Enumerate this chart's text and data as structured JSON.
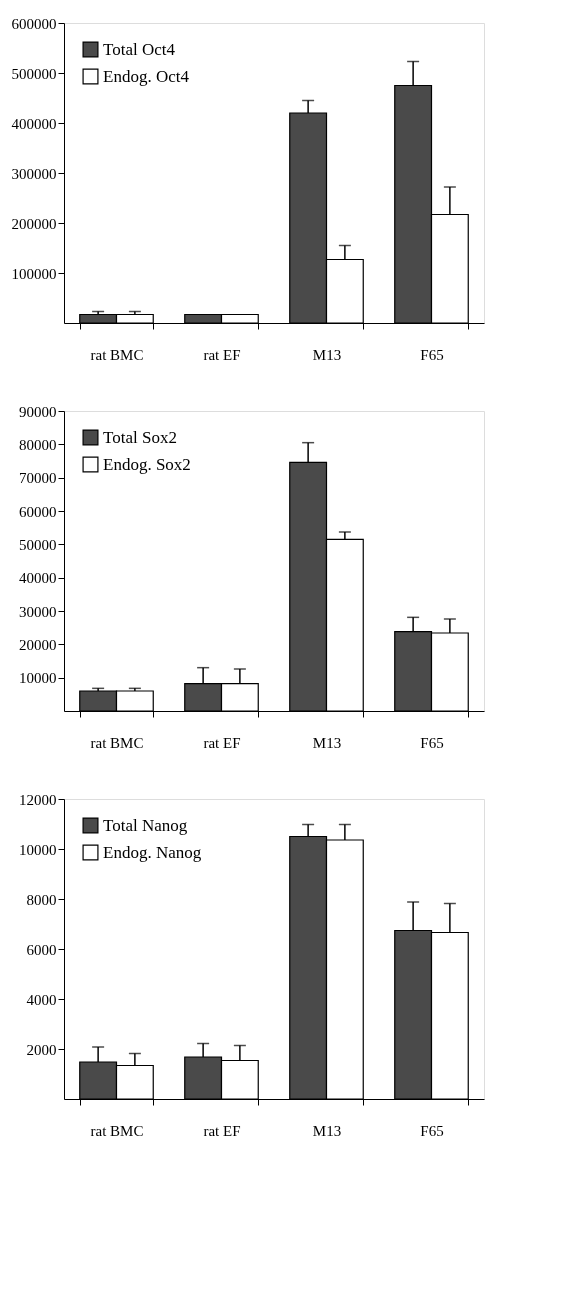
{
  "chart_data": [
    {
      "type": "bar",
      "categories": [
        "rat BMC",
        "rat EF",
        "M13",
        "F65"
      ],
      "ylim": [
        0,
        600000
      ],
      "yticks": [
        100000,
        200000,
        300000,
        400000,
        500000,
        600000
      ],
      "legend": "top left",
      "grid": false,
      "series": [
        {
          "name": "Total Oct4",
          "color": "#4a4a4a",
          "values": [
            17000,
            17000,
            420000,
            475000
          ],
          "errors": [
            6000,
            null,
            25000,
            48000
          ]
        },
        {
          "name": "Endog. Oct4",
          "color": "#ffffff",
          "values": [
            17000,
            17000,
            127000,
            217000
          ],
          "errors": [
            6000,
            null,
            28000,
            55000
          ]
        }
      ]
    },
    {
      "type": "bar",
      "categories": [
        "rat BMC",
        "rat EF",
        "M13",
        "F65"
      ],
      "ylim": [
        0,
        90000
      ],
      "yticks": [
        10000,
        20000,
        30000,
        40000,
        50000,
        60000,
        70000,
        80000,
        90000
      ],
      "legend": "top left",
      "grid": false,
      "series": [
        {
          "name": "Total Sox2",
          "color": "#4a4a4a",
          "values": [
            6000,
            8200,
            74600,
            23800
          ],
          "errors": [
            800,
            4800,
            5900,
            4300
          ]
        },
        {
          "name": "Endog. Sox2",
          "color": "#ffffff",
          "values": [
            6000,
            8200,
            51500,
            23400
          ],
          "errors": [
            800,
            4400,
            2200,
            4200
          ]
        }
      ]
    },
    {
      "type": "bar",
      "categories": [
        "rat BMC",
        "rat EF",
        "M13",
        "F65"
      ],
      "ylim": [
        0,
        12000
      ],
      "yticks": [
        2000,
        4000,
        6000,
        8000,
        10000,
        12000
      ],
      "legend": "top left",
      "grid": false,
      "series": [
        {
          "name": "Total Nanog",
          "color": "#4a4a4a",
          "values": [
            1480,
            1680,
            10500,
            6740
          ],
          "errors": [
            600,
            540,
            480,
            1140
          ]
        },
        {
          "name": "Endog. Nanog",
          "color": "#ffffff",
          "values": [
            1340,
            1540,
            10360,
            6660
          ],
          "errors": [
            480,
            600,
            620,
            1160
          ]
        }
      ]
    }
  ]
}
